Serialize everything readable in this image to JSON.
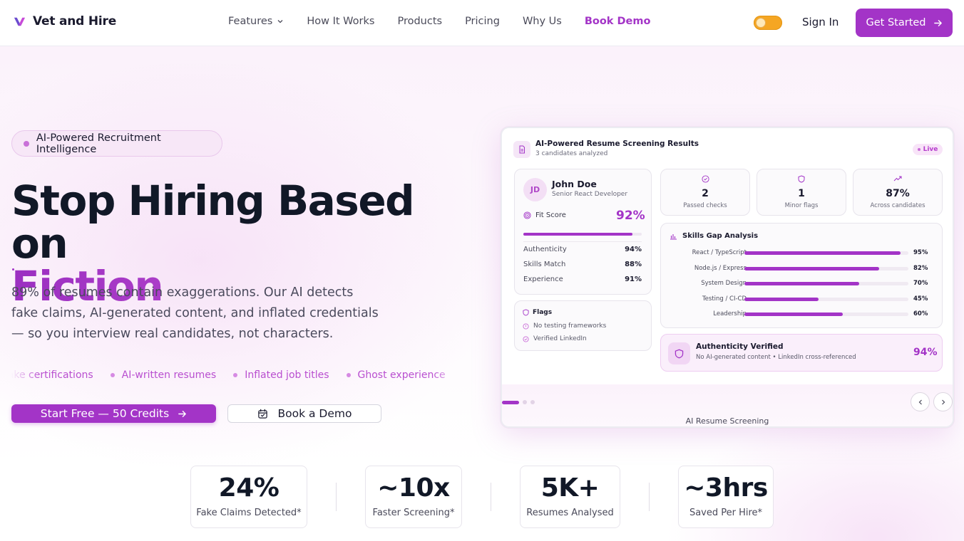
{
  "brand": {
    "name": "Vet and Hire",
    "logo_icon": "vh-logo-icon"
  },
  "nav": {
    "links": [
      "Features",
      "How It Works",
      "Products",
      "Pricing",
      "Why Us"
    ],
    "book_demo": "Book Demo",
    "features_chevron_icon": "chevron-down-icon"
  },
  "header_actions": {
    "sign_in": "Sign In",
    "get_started": "Get Started",
    "theme_toggle_icon": "sun-icon"
  },
  "hero": {
    "pill": "AI-Powered Recruitment Intelligence",
    "headline_line1": "Stop Hiring Based on",
    "headline_line2": "Fiction",
    "subtext": "89% of resumes contain exaggerations. Our AI detects fake claims, AI-generated content, and inflated credentials — so you interview real candidates, not characters.",
    "ticker": [
      "Fake certifications",
      "AI-written resumes",
      "Inflated job titles",
      "Ghost experience"
    ],
    "cta_primary": "Start Free — 50 Credits",
    "cta_secondary": "Book a Demo"
  },
  "dashboard": {
    "title": "AI-Powered Resume Screening Results",
    "subtitle": "3 candidates analyzed",
    "live": "Live",
    "candidate": {
      "initials": "JD",
      "name": "John Doe",
      "role": "Senior React Developer",
      "fit_label": "Fit Score",
      "fit_value": "92%",
      "fit_fraction": 0.92,
      "metrics": [
        {
          "label": "Authenticity",
          "value": "94%"
        },
        {
          "label": "Skills Match",
          "value": "88%"
        },
        {
          "label": "Experience",
          "value": "91%"
        }
      ]
    },
    "flags": {
      "title": "Flags",
      "items": [
        "No testing frameworks",
        "Verified LinkedIn"
      ]
    },
    "stats": [
      {
        "value": "2",
        "label": "Passed checks",
        "icon": "check-circle-icon"
      },
      {
        "value": "1",
        "label": "Minor flags",
        "icon": "shield-icon"
      },
      {
        "value": "87%",
        "label": "Across candidates",
        "icon": "trending-up-icon"
      }
    ],
    "skills": {
      "title": "Skills Gap Analysis",
      "items": [
        {
          "name": "React / TypeScript",
          "pct": "95%",
          "value": 0.95
        },
        {
          "name": "Node.js / Express",
          "pct": "82%",
          "value": 0.82
        },
        {
          "name": "System Design",
          "pct": "70%",
          "value": 0.7
        },
        {
          "name": "Testing / CI-CD",
          "pct": "45%",
          "value": 0.45
        },
        {
          "name": "Leadership",
          "pct": "60%",
          "value": 0.6
        }
      ]
    },
    "authenticity": {
      "title": "Authenticity Verified",
      "subtitle": "No AI-generated content • LinkedIn cross-referenced",
      "value": "94%"
    },
    "carousel_label": "AI Resume Screening",
    "carousel_active_index": 0,
    "carousel_count": 3
  },
  "stats": [
    {
      "value": "24%",
      "label": "Fake Claims Detected*"
    },
    {
      "value": "~10x",
      "label": "Faster Screening*"
    },
    {
      "value": "5K+",
      "label": "Resumes Analysed"
    },
    {
      "value": "~3hrs",
      "label": "Saved Per Hire*"
    }
  ],
  "colors": {
    "accent": "#a334c7",
    "toggle": "#f5a623",
    "text_dark": "#111827"
  }
}
